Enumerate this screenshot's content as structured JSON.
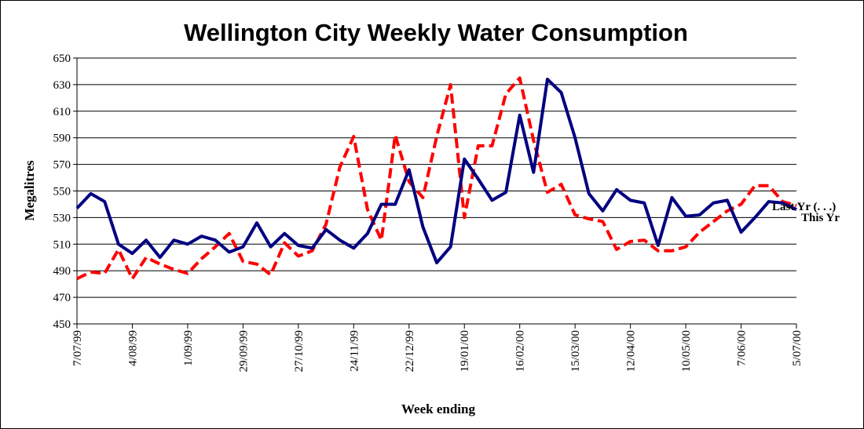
{
  "chart_data": {
    "type": "line",
    "title": "Wellington City Weekly Water Consumption",
    "x_label": "Week ending",
    "y_label": "Megalitres",
    "categories": [
      "7/07/99",
      null,
      null,
      null,
      "4/08/99",
      null,
      null,
      null,
      "1/09/99",
      null,
      null,
      null,
      "29/09/99",
      null,
      null,
      null,
      "27/10/99",
      null,
      null,
      null,
      "24/11/99",
      null,
      null,
      null,
      "22/12/99",
      null,
      null,
      null,
      "19/01/00",
      null,
      null,
      null,
      "16/02/00",
      null,
      null,
      null,
      "15/03/00",
      null,
      null,
      null,
      "12/04/00",
      null,
      null,
      null,
      "10/05/00",
      null,
      null,
      null,
      "7/06/00",
      null,
      null,
      null,
      "5/07/00"
    ],
    "series": [
      {
        "name": "This Yr",
        "color": "#000080",
        "dashed": false,
        "values": [
          537,
          548,
          542,
          510,
          503,
          513,
          500,
          513,
          510,
          516,
          513,
          504,
          508,
          526,
          508,
          518,
          509,
          507,
          521,
          513,
          507,
          518,
          540,
          540,
          566,
          523,
          496,
          508,
          574,
          559,
          543,
          549,
          607,
          564,
          634,
          624,
          590,
          548,
          535,
          551,
          543,
          541,
          509,
          545,
          531,
          532,
          541,
          543,
          519,
          530,
          542,
          541,
          536
        ]
      },
      {
        "name": "Last Yr (. . .)",
        "color": "#ff0000",
        "dashed": true,
        "values": [
          484,
          489,
          488,
          506,
          484,
          500,
          495,
          491,
          488,
          499,
          508,
          518,
          497,
          495,
          487,
          511,
          501,
          505,
          525,
          568,
          591,
          536,
          513,
          592,
          557,
          545,
          591,
          630,
          530,
          584,
          584,
          623,
          635,
          588,
          549,
          555,
          532,
          529,
          527,
          506,
          512,
          513,
          505,
          505,
          508,
          519,
          527,
          535,
          540,
          554,
          554,
          542,
          539
        ]
      }
    ],
    "ylim": [
      450,
      650
    ],
    "yticks": [
      450,
      470,
      490,
      510,
      530,
      550,
      570,
      590,
      610,
      630,
      650
    ],
    "grid": true
  }
}
